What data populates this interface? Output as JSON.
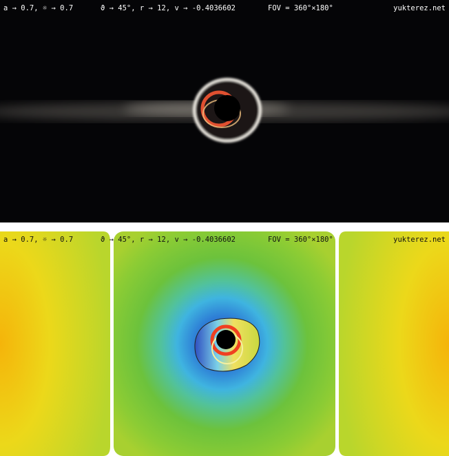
{
  "panels": [
    {
      "labels": {
        "left": "a → 0.7, ☼ → 0.7",
        "center": "ϑ → 45°, r → 12, v → -0.4036602",
        "fov": "FOV = 360°×180°",
        "site": "yukterez.net"
      }
    },
    {
      "labels": {
        "left": "a → 0.7, ☼ → 0.7",
        "center": "ϑ → 45°, r → 12, v → -0.4036602",
        "fov": "FOV = 360°×180°",
        "site": "yukterez.net"
      }
    }
  ]
}
